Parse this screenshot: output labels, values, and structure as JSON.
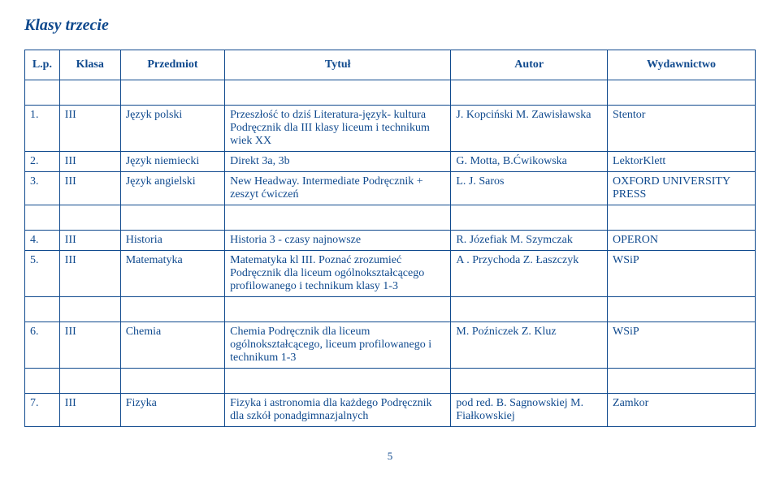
{
  "title": "Klasy trzecie",
  "headers": {
    "lp": "L.p.",
    "klasa": "Klasa",
    "przedmiot": "Przedmiot",
    "tytul": "Tytuł",
    "autor": "Autor",
    "wydawnictwo": "Wydawnictwo"
  },
  "block1": [
    {
      "lp": "1.",
      "klasa": "III",
      "przedmiot": "Język polski",
      "tytul": "Przeszłość to dziś Literatura-język- kultura Podręcznik dla III klasy liceum i technikum wiek XX",
      "autor": "J. Kopciński M. Zawisławska",
      "wyd": "Stentor"
    },
    {
      "lp": "2.",
      "klasa": "III",
      "przedmiot": "Język niemiecki",
      "tytul": "Direkt 3a, 3b",
      "autor": "G. Motta, B.Ćwikowska",
      "wyd": "LektorKlett"
    },
    {
      "lp": "3.",
      "klasa": "III",
      "przedmiot": "Język angielski",
      "tytul": "New Headway. Intermediate Podręcznik + zeszyt ćwiczeń",
      "autor": "L. J. Saros",
      "wyd": "OXFORD UNIVERSITY PRESS"
    }
  ],
  "block2": [
    {
      "lp": "4.",
      "klasa": "III",
      "przedmiot": "Historia",
      "tytul": "Historia 3 - czasy najnowsze",
      "autor": "R. Józefiak M. Szymczak",
      "wyd": "OPERON"
    },
    {
      "lp": "5.",
      "klasa": "III",
      "przedmiot": "Matematyka",
      "tytul": "Matematyka kl III. Poznać zrozumieć Podręcznik dla liceum ogólnokształcącego profilowanego i technikum klasy 1-3",
      "autor": "A . Przychoda Z. Łaszczyk",
      "wyd": "WSiP"
    }
  ],
  "block3": [
    {
      "lp": "6.",
      "klasa": "III",
      "przedmiot": "Chemia",
      "tytul": "Chemia Podręcznik dla liceum ogólnokształcącego, liceum profilowanego i technikum 1-3",
      "autor": "M. Poźniczek Z. Kluz",
      "wyd": "WSiP"
    }
  ],
  "block4": [
    {
      "lp": "7.",
      "klasa": "III",
      "przedmiot": "Fizyka",
      "tytul": "Fizyka i astronomia dla każdego Podręcznik dla szkół ponadgimnazjalnych",
      "autor": "pod red. B. Sagnowskiej M. Fiałkowskiej",
      "wyd": "Zamkor"
    }
  ],
  "pageNumber": "5"
}
